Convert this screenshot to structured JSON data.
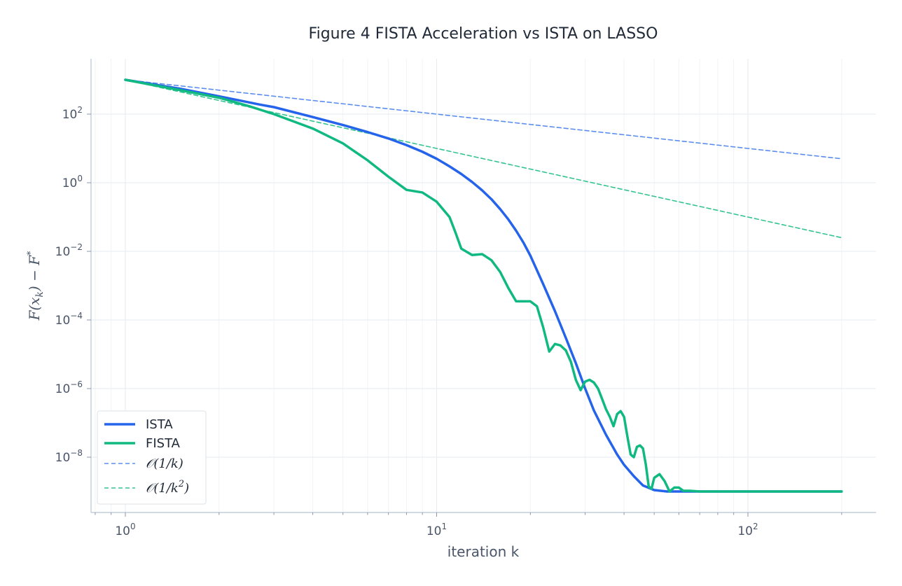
{
  "chart_data": {
    "type": "line",
    "title": "Figure 4  FISTA Acceleration vs ISTA on LASSO",
    "xlabel": "iteration k",
    "ylabel_base": "F(x",
    "ylabel_sub": "k",
    "ylabel_rest": ") − F",
    "ylabel_sup": "*",
    "x_scale": "log",
    "y_scale": "log",
    "xlim": [
      0.8,
      230
    ],
    "ylim": [
      2.5e-10,
      3000.0
    ],
    "x_ticks": [
      {
        "value": 1,
        "base": "10",
        "exp": "0"
      },
      {
        "value": 10,
        "base": "10",
        "exp": "1"
      },
      {
        "value": 100,
        "base": "10",
        "exp": "2"
      }
    ],
    "y_ticks": [
      {
        "value": 100.0,
        "base": "10",
        "exp": "2"
      },
      {
        "value": 1.0,
        "base": "10",
        "exp": "0"
      },
      {
        "value": 0.01,
        "base": "10",
        "exp": "−2"
      },
      {
        "value": 0.0001,
        "base": "10",
        "exp": "−4"
      },
      {
        "value": 1e-06,
        "base": "10",
        "exp": "−6"
      },
      {
        "value": 1e-08,
        "base": "10",
        "exp": "−8"
      }
    ],
    "grid": true,
    "legend_position": "bottom-left",
    "series": [
      {
        "name": "ISTA",
        "color": "#2563eb",
        "style": "solid",
        "points": [
          [
            1,
            1000
          ],
          [
            1.5,
            550
          ],
          [
            2,
            330
          ],
          [
            2.7,
            190
          ],
          [
            3,
            160
          ],
          [
            4,
            82
          ],
          [
            5,
            48
          ],
          [
            6,
            30
          ],
          [
            7,
            19.5
          ],
          [
            8,
            12.5
          ],
          [
            9,
            8
          ],
          [
            10,
            5
          ],
          [
            11,
            3
          ],
          [
            12,
            1.8
          ],
          [
            13,
            1.05
          ],
          [
            14,
            0.6
          ],
          [
            15,
            0.33
          ],
          [
            16,
            0.17
          ],
          [
            17,
            0.085
          ],
          [
            18,
            0.04
          ],
          [
            19,
            0.018
          ],
          [
            20,
            0.0075
          ],
          [
            22,
            0.0011
          ],
          [
            24,
            0.00018
          ],
          [
            26,
            3e-05
          ],
          [
            28,
            5.5e-06
          ],
          [
            30,
            1e-06
          ],
          [
            32,
            2.3e-07
          ],
          [
            35,
            4.5e-08
          ],
          [
            38,
            1.2e-08
          ],
          [
            40,
            6e-09
          ],
          [
            43,
            2.8e-09
          ],
          [
            46,
            1.5e-09
          ],
          [
            50,
            1.1e-09
          ],
          [
            55,
            1e-09
          ],
          [
            70,
            1e-09
          ],
          [
            100,
            1e-09
          ],
          [
            200,
            1e-09
          ]
        ]
      },
      {
        "name": "FISTA",
        "color": "#10b981",
        "style": "solid",
        "points": [
          [
            1,
            1000
          ],
          [
            1.5,
            500
          ],
          [
            2,
            300
          ],
          [
            2.5,
            170
          ],
          [
            3,
            100
          ],
          [
            4,
            38
          ],
          [
            5,
            14
          ],
          [
            6,
            4.5
          ],
          [
            7,
            1.5
          ],
          [
            8,
            0.62
          ],
          [
            9,
            0.52
          ],
          [
            10,
            0.28
          ],
          [
            11,
            0.1
          ],
          [
            11.5,
            0.035
          ],
          [
            12,
            0.012
          ],
          [
            13,
            0.0078
          ],
          [
            14,
            0.0083
          ],
          [
            15,
            0.0055
          ],
          [
            16,
            0.0025
          ],
          [
            17,
            0.00085
          ],
          [
            18,
            0.00035
          ],
          [
            19,
            0.00035
          ],
          [
            20,
            0.00035
          ],
          [
            21,
            0.00025
          ],
          [
            22,
            6e-05
          ],
          [
            23,
            1.2e-05
          ],
          [
            24,
            2e-05
          ],
          [
            25,
            1.8e-05
          ],
          [
            26,
            1.3e-05
          ],
          [
            27,
            6e-06
          ],
          [
            28,
            1.8e-06
          ],
          [
            29,
            9e-07
          ],
          [
            30,
            1.6e-06
          ],
          [
            31,
            1.8e-06
          ],
          [
            32,
            1.5e-06
          ],
          [
            33,
            1e-06
          ],
          [
            34,
            5e-07
          ],
          [
            35,
            2.5e-07
          ],
          [
            36,
            1.5e-07
          ],
          [
            37,
            8e-08
          ],
          [
            38,
            1.8e-07
          ],
          [
            39,
            2.2e-07
          ],
          [
            40,
            1.5e-07
          ],
          [
            41,
            4e-08
          ],
          [
            42,
            1.2e-08
          ],
          [
            43,
            1e-08
          ],
          [
            44,
            2e-08
          ],
          [
            45,
            2.2e-08
          ],
          [
            46,
            1.8e-08
          ],
          [
            47,
            6e-09
          ],
          [
            48,
            1.4e-09
          ],
          [
            49,
            1.2e-09
          ],
          [
            50,
            2.5e-09
          ],
          [
            52,
            3.2e-09
          ],
          [
            54,
            2e-09
          ],
          [
            56,
            1e-09
          ],
          [
            58,
            1.3e-09
          ],
          [
            60,
            1.3e-09
          ],
          [
            62,
            1.05e-09
          ],
          [
            65,
            1.05e-09
          ],
          [
            70,
            1e-09
          ],
          [
            100,
            1e-09
          ],
          [
            200,
            1e-09
          ]
        ]
      },
      {
        "name": "O(1/k)",
        "color": "#5b8def",
        "style": "dashed",
        "points": [
          [
            1,
            1000
          ],
          [
            2,
            500
          ],
          [
            5,
            200
          ],
          [
            10,
            100
          ],
          [
            20,
            50
          ],
          [
            50,
            20
          ],
          [
            100,
            10
          ],
          [
            200,
            5
          ]
        ]
      },
      {
        "name": "O(1/k²)",
        "color": "#34c48f",
        "style": "dashed",
        "points": [
          [
            1,
            1000
          ],
          [
            2,
            250
          ],
          [
            5,
            40
          ],
          [
            10,
            10
          ],
          [
            20,
            2.5
          ],
          [
            50,
            0.4
          ],
          [
            100,
            0.1
          ],
          [
            200,
            0.025
          ]
        ]
      }
    ],
    "legend": [
      {
        "key": "ista",
        "text": "ISTA",
        "color": "#2563eb",
        "style": "solid",
        "math": false
      },
      {
        "key": "fista",
        "text": "FISTA",
        "color": "#10b981",
        "style": "solid",
        "math": false
      },
      {
        "key": "o1k",
        "prefix": "𝒪",
        "body": "(1/k)",
        "sup": "",
        "tail": "",
        "color": "#5b8def",
        "style": "dashed",
        "math": true
      },
      {
        "key": "o1k2",
        "prefix": "𝒪",
        "body": "(1/k",
        "sup": "2",
        "tail": ")",
        "color": "#34c48f",
        "style": "dashed",
        "math": true
      }
    ]
  }
}
